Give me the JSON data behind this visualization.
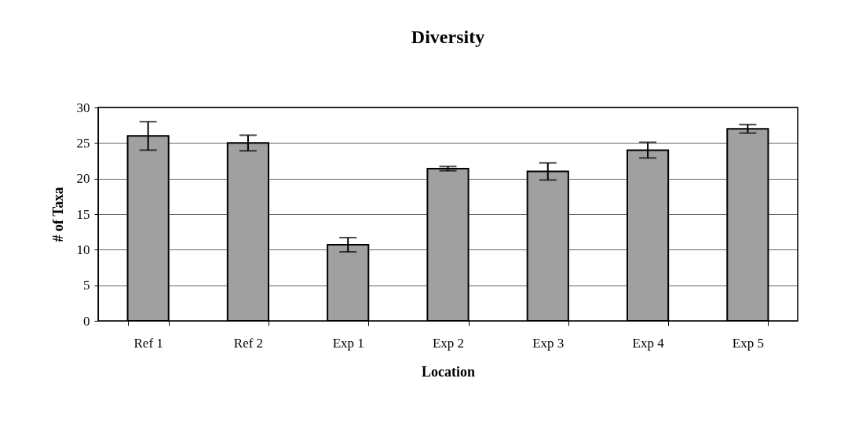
{
  "chart_data": {
    "type": "bar",
    "title": "Diversity",
    "xlabel": "Location",
    "ylabel": "# of Taxa",
    "categories": [
      "Ref 1",
      "Ref 2",
      "Exp 1",
      "Exp 2",
      "Exp 3",
      "Exp 4",
      "Exp 5"
    ],
    "values": [
      26,
      25,
      10.7,
      21.4,
      21,
      24,
      27
    ],
    "errors": [
      2,
      1.1,
      1,
      0.3,
      1.2,
      1.1,
      0.6
    ],
    "color": "#a0a0a0",
    "ylim": [
      0,
      30
    ],
    "yticks": [
      0,
      5,
      10,
      15,
      20,
      25,
      30
    ],
    "grid": "y"
  }
}
